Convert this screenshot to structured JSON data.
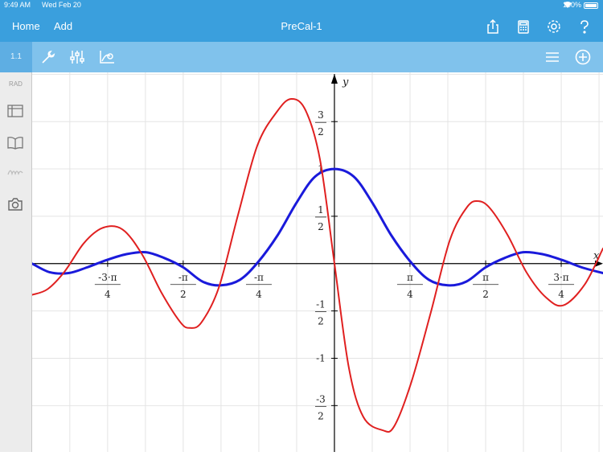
{
  "status": {
    "time": "9:49 AM",
    "date": "Wed Feb 20",
    "battery": "100%"
  },
  "nav": {
    "home": "Home",
    "add": "Add",
    "title": "PreCal-1"
  },
  "toolbar": {
    "page": "1.1"
  },
  "sidebar": {
    "angle_mode": "RAD"
  },
  "icons": {
    "nav": [
      "share-icon",
      "calculator-icon",
      "gear-icon",
      "help-icon"
    ],
    "toolbar": [
      "wrench-icon",
      "sliders-icon",
      "graph-entry-icon",
      "menu-icon",
      "add-icon"
    ],
    "sidebar": [
      "layout-icon",
      "book-icon",
      "signature-icon",
      "camera-icon"
    ]
  },
  "colors": {
    "accent": "#3a9fdd",
    "toolbar": "#80c2ec",
    "series_red": "#e02020",
    "series_blue": "#1a1adb"
  },
  "chart_data": {
    "type": "line",
    "xlabel": "x",
    "ylabel": "y",
    "xlim": [
      -3.14,
      2.79
    ],
    "ylim": [
      -1.99,
      2.02
    ],
    "grid": true,
    "x_ticks": [
      {
        "value": -2.356,
        "num": "-3·π",
        "den": "4"
      },
      {
        "value": -1.571,
        "num": "-π",
        "den": "2"
      },
      {
        "value": -0.785,
        "num": "-π",
        "den": "4"
      },
      {
        "value": 0.785,
        "num": "π",
        "den": "4"
      },
      {
        "value": 1.571,
        "num": "π",
        "den": "2"
      },
      {
        "value": 2.356,
        "num": "3·π",
        "den": "4"
      }
    ],
    "y_ticks": [
      {
        "value": 1.5,
        "num": "3",
        "den": "2"
      },
      {
        "value": 1,
        "num": "1",
        "den": ""
      },
      {
        "value": 0.5,
        "num": "1",
        "den": "2"
      },
      {
        "value": -0.5,
        "num": "-1",
        "den": "2"
      },
      {
        "value": -1,
        "num": "-1",
        "den": ""
      },
      {
        "value": -1.5,
        "num": "-3",
        "den": "2"
      }
    ],
    "series": [
      {
        "color": "#1a1adb",
        "points": [
          [
            -3.14,
            0.0
          ],
          [
            -2.96,
            -0.09
          ],
          [
            -2.76,
            -0.1
          ],
          [
            -2.57,
            -0.04
          ],
          [
            -2.36,
            0.04
          ],
          [
            -2.16,
            0.1
          ],
          [
            -1.96,
            0.12
          ],
          [
            -1.77,
            0.06
          ],
          [
            -1.57,
            -0.04
          ],
          [
            -1.37,
            -0.19
          ],
          [
            -1.18,
            -0.23
          ],
          [
            -0.98,
            -0.17
          ],
          [
            -0.79,
            0.02
          ],
          [
            -0.59,
            0.3
          ],
          [
            -0.39,
            0.65
          ],
          [
            -0.2,
            0.92
          ],
          [
            0.0,
            1.0
          ],
          [
            0.2,
            0.92
          ],
          [
            0.39,
            0.65
          ],
          [
            0.59,
            0.3
          ],
          [
            0.79,
            0.02
          ],
          [
            0.98,
            -0.17
          ],
          [
            1.18,
            -0.23
          ],
          [
            1.37,
            -0.19
          ],
          [
            1.57,
            -0.04
          ],
          [
            1.77,
            0.06
          ],
          [
            1.96,
            0.12
          ],
          [
            2.16,
            0.1
          ],
          [
            2.36,
            0.04
          ],
          [
            2.57,
            -0.04
          ],
          [
            2.79,
            -0.1
          ]
        ]
      },
      {
        "color": "#e02020",
        "points": [
          [
            -3.14,
            -0.33
          ],
          [
            -2.98,
            -0.27
          ],
          [
            -2.8,
            -0.08
          ],
          [
            -2.6,
            0.22
          ],
          [
            -2.4,
            0.38
          ],
          [
            -2.2,
            0.36
          ],
          [
            -2.0,
            0.1
          ],
          [
            -1.8,
            -0.3
          ],
          [
            -1.6,
            -0.62
          ],
          [
            -1.5,
            -0.68
          ],
          [
            -1.38,
            -0.62
          ],
          [
            -1.2,
            -0.25
          ],
          [
            -1.0,
            0.52
          ],
          [
            -0.8,
            1.25
          ],
          [
            -0.6,
            1.6
          ],
          [
            -0.45,
            1.74
          ],
          [
            -0.3,
            1.62
          ],
          [
            -0.15,
            1.1
          ],
          [
            0.0,
            0.0
          ],
          [
            0.15,
            -1.1
          ],
          [
            0.3,
            -1.62
          ],
          [
            0.5,
            -1.76
          ],
          [
            0.62,
            -1.72
          ],
          [
            0.8,
            -1.25
          ],
          [
            1.0,
            -0.52
          ],
          [
            1.2,
            0.25
          ],
          [
            1.38,
            0.6
          ],
          [
            1.5,
            0.66
          ],
          [
            1.62,
            0.58
          ],
          [
            1.8,
            0.3
          ],
          [
            2.0,
            -0.1
          ],
          [
            2.2,
            -0.36
          ],
          [
            2.38,
            -0.44
          ],
          [
            2.6,
            -0.22
          ],
          [
            2.79,
            0.16
          ]
        ]
      }
    ]
  }
}
